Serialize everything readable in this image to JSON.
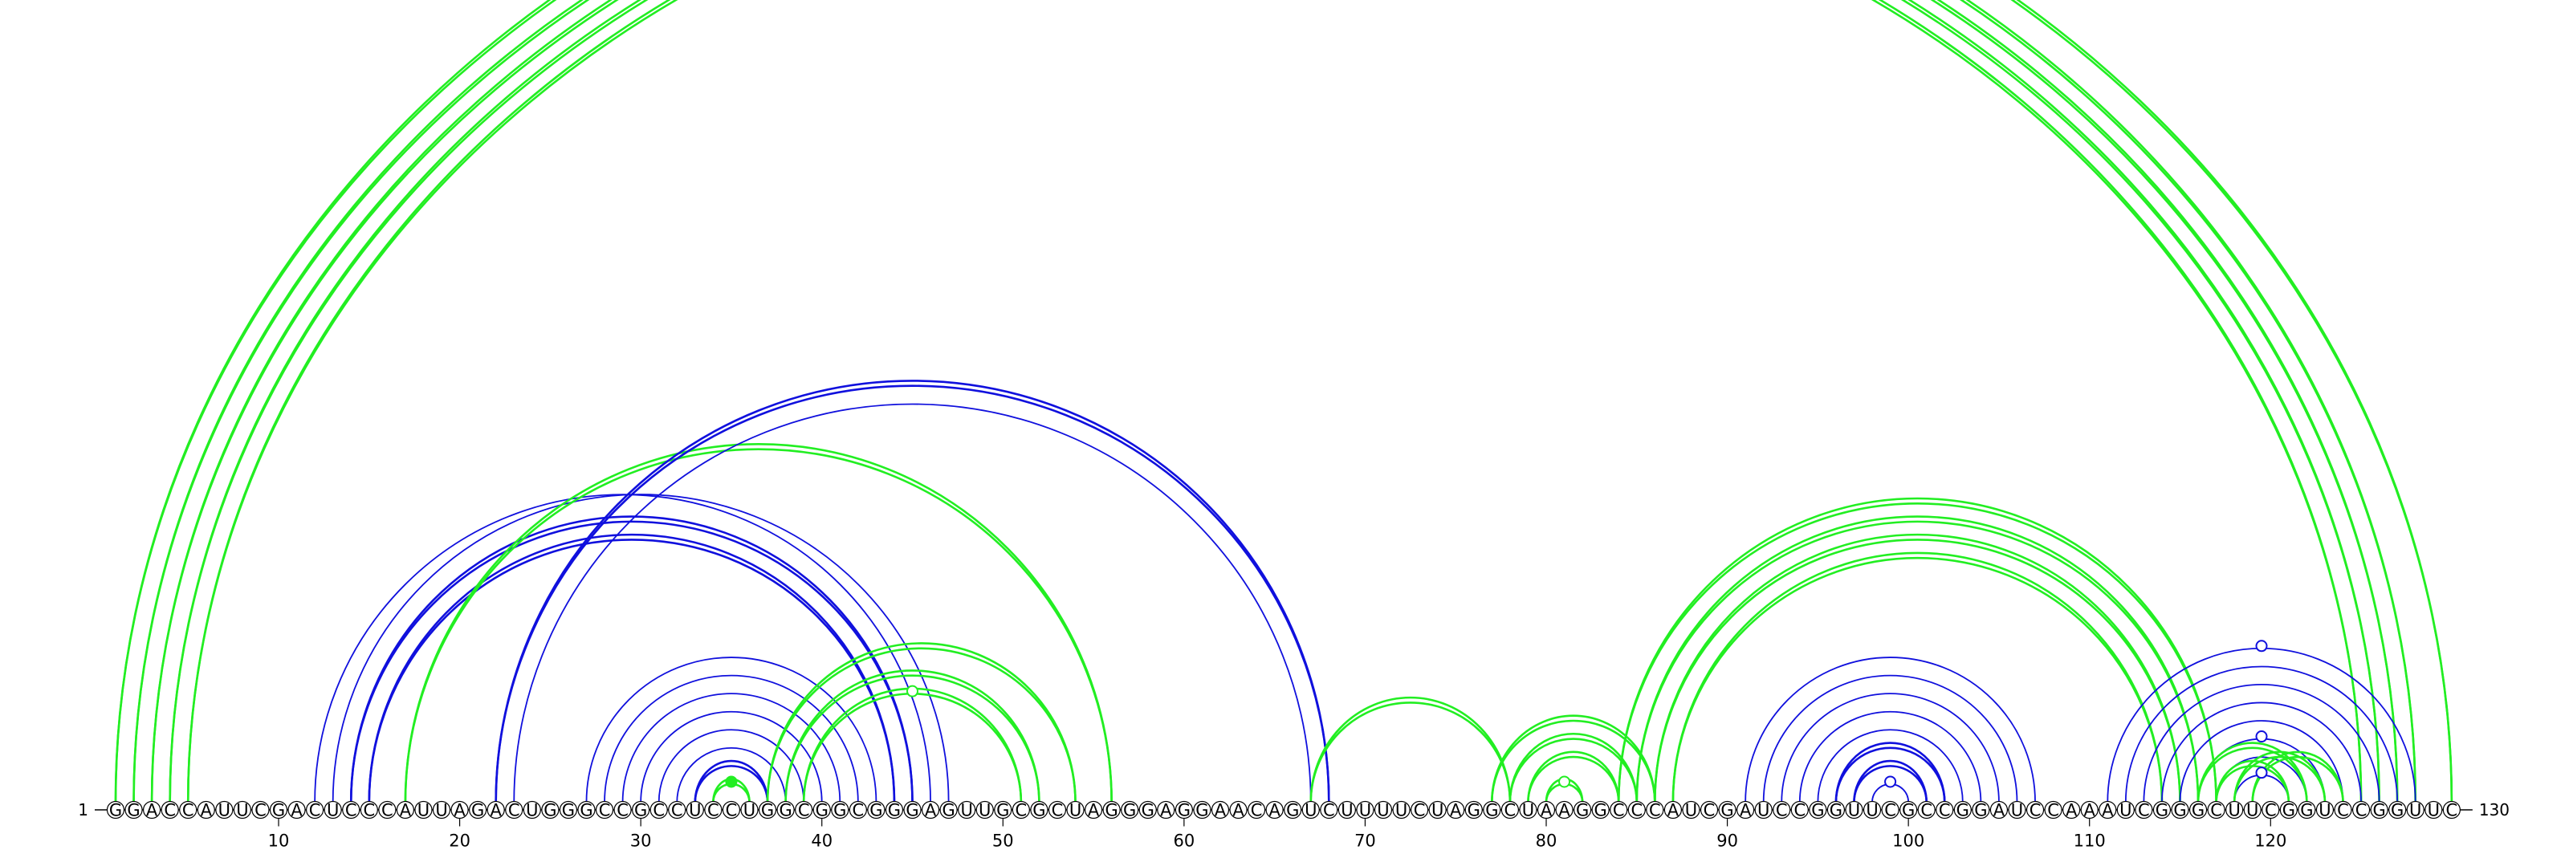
{
  "sequence": "GGACCAUUCGACUCCCAUUAGACUGGGCCGCCUCCUGGCGGCGGGAGUUGCGCUAGGGAGGAACAGUCUUUUCUAGGCUAAGGCCCAUCGAUCCGGUUCGCCGGAUCCAAAUCGGGCUUCGGUCCGGUUC",
  "start_label": "1",
  "end_label": "130",
  "position_ticks": [
    10,
    20,
    30,
    40,
    50,
    60,
    70,
    80,
    90,
    100,
    110,
    120
  ],
  "colors": {
    "green": "#22ee22",
    "blue": "#1010dd"
  },
  "arcs": [
    {
      "i": 1,
      "j": 130,
      "color": "green",
      "double": true
    },
    {
      "i": 2,
      "j": 128,
      "color": "green",
      "double": true
    },
    {
      "i": 3,
      "j": 127,
      "color": "green",
      "double": true
    },
    {
      "i": 4,
      "j": 126,
      "color": "green",
      "double": true
    },
    {
      "i": 5,
      "j": 125,
      "color": "green",
      "double": true
    },
    {
      "i": 12,
      "j": 46,
      "color": "blue",
      "double": false
    },
    {
      "i": 13,
      "j": 47,
      "color": "blue",
      "double": false
    },
    {
      "i": 14,
      "j": 45,
      "color": "blue",
      "double": true
    },
    {
      "i": 15,
      "j": 44,
      "color": "blue",
      "double": true
    },
    {
      "i": 17,
      "j": 56,
      "color": "green",
      "double": true
    },
    {
      "i": 22,
      "j": 68,
      "color": "blue",
      "double": true
    },
    {
      "i": 23,
      "j": 67,
      "color": "blue",
      "double": false
    },
    {
      "i": 27,
      "j": 43,
      "color": "blue",
      "double": false
    },
    {
      "i": 28,
      "j": 42,
      "color": "blue",
      "double": false
    },
    {
      "i": 29,
      "j": 41,
      "color": "blue",
      "double": false
    },
    {
      "i": 30,
      "j": 40,
      "color": "blue",
      "double": false
    },
    {
      "i": 31,
      "j": 39,
      "color": "blue",
      "double": false
    },
    {
      "i": 32,
      "j": 38,
      "color": "blue",
      "double": false
    },
    {
      "i": 33,
      "j": 37,
      "color": "blue",
      "double": true
    },
    {
      "i": 34,
      "j": 36,
      "color": "green",
      "double": true
    },
    {
      "i": 37,
      "j": 54,
      "color": "green",
      "double": true
    },
    {
      "i": 38,
      "j": 52,
      "color": "green",
      "double": true
    },
    {
      "i": 39,
      "j": 51,
      "color": "green",
      "double": true
    },
    {
      "i": 67,
      "j": 78,
      "color": "green",
      "double": true
    },
    {
      "i": 77,
      "j": 86,
      "color": "green",
      "double": true
    },
    {
      "i": 78,
      "j": 85,
      "color": "green",
      "double": true
    },
    {
      "i": 79,
      "j": 84,
      "color": "green",
      "double": true
    },
    {
      "i": 80,
      "j": 82,
      "color": "green",
      "double": true
    },
    {
      "i": 84,
      "j": 117,
      "color": "green",
      "double": true
    },
    {
      "i": 85,
      "j": 116,
      "color": "green",
      "double": true
    },
    {
      "i": 86,
      "j": 115,
      "color": "green",
      "double": true
    },
    {
      "i": 87,
      "j": 114,
      "color": "green",
      "double": true
    },
    {
      "i": 91,
      "j": 107,
      "color": "blue",
      "double": false
    },
    {
      "i": 92,
      "j": 106,
      "color": "blue",
      "double": false
    },
    {
      "i": 93,
      "j": 105,
      "color": "blue",
      "double": false
    },
    {
      "i": 94,
      "j": 104,
      "color": "blue",
      "double": false
    },
    {
      "i": 95,
      "j": 103,
      "color": "blue",
      "double": false
    },
    {
      "i": 96,
      "j": 102,
      "color": "blue",
      "double": true
    },
    {
      "i": 97,
      "j": 101,
      "color": "blue",
      "double": true
    },
    {
      "i": 98,
      "j": 100,
      "color": "blue",
      "double": false
    },
    {
      "i": 111,
      "j": 128,
      "color": "blue",
      "double": false
    },
    {
      "i": 112,
      "j": 127,
      "color": "blue",
      "double": false
    },
    {
      "i": 113,
      "j": 126,
      "color": "blue",
      "double": false
    },
    {
      "i": 114,
      "j": 125,
      "color": "blue",
      "double": false
    },
    {
      "i": 115,
      "j": 124,
      "color": "blue",
      "double": false
    },
    {
      "i": 116,
      "j": 123,
      "color": "blue",
      "double": false
    },
    {
      "i": 117,
      "j": 122,
      "color": "blue",
      "double": false
    },
    {
      "i": 118,
      "j": 121,
      "color": "blue",
      "double": false
    },
    {
      "i": 117,
      "j": 121,
      "color": "green",
      "double": true
    },
    {
      "i": 116,
      "j": 122,
      "color": "green",
      "double": true
    },
    {
      "i": 118,
      "j": 123,
      "color": "green",
      "double": true
    },
    {
      "i": 119,
      "j": 124,
      "color": "green",
      "double": true
    }
  ],
  "markers": [
    {
      "i": 1,
      "j": 130,
      "color": "green",
      "filled": false
    },
    {
      "i": 34,
      "j": 36,
      "color": "green",
      "filled": true
    },
    {
      "i": 39,
      "j": 51,
      "color": "green",
      "filled": false
    },
    {
      "i": 80,
      "j": 82,
      "color": "green",
      "filled": false
    },
    {
      "i": 98,
      "j": 100,
      "color": "blue",
      "filled": false
    },
    {
      "i": 111,
      "j": 128,
      "color": "blue",
      "filled": false
    },
    {
      "i": 116,
      "j": 123,
      "color": "blue",
      "filled": false
    },
    {
      "i": 118,
      "j": 121,
      "color": "blue",
      "filled": false
    }
  ]
}
